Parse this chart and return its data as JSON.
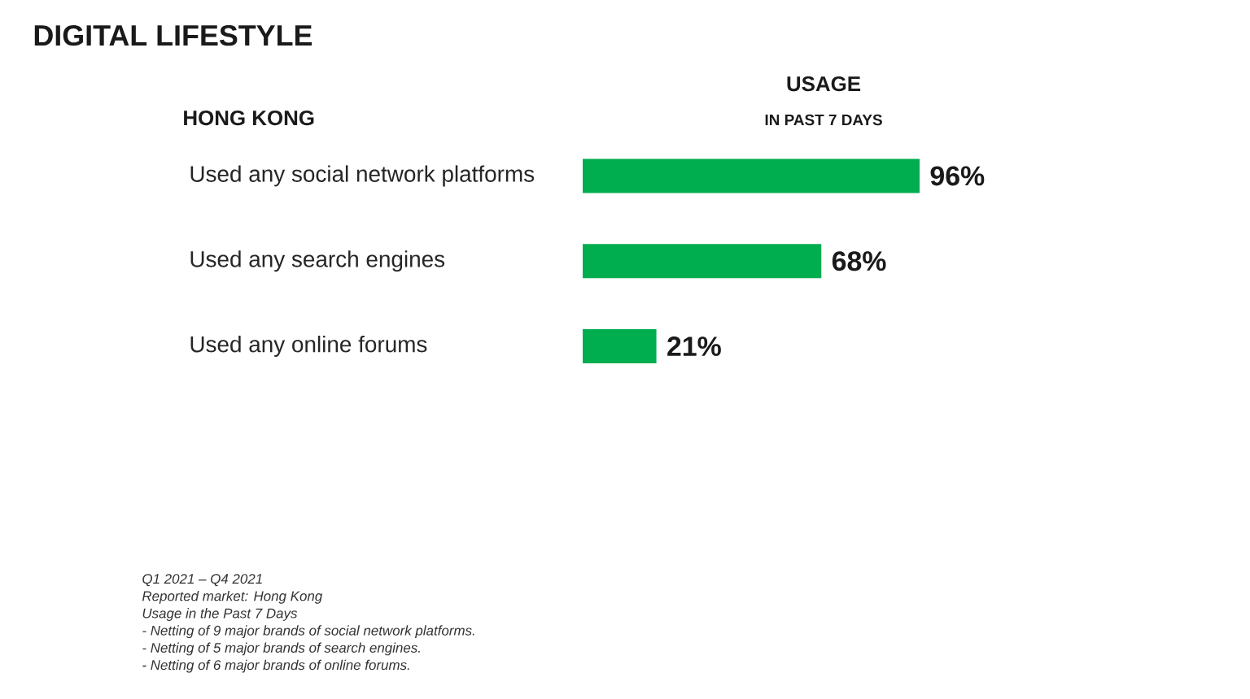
{
  "chart_data": {
    "type": "bar",
    "orientation": "horizontal",
    "title": "DIGITAL LIFESTYLE",
    "subtitle": "HONG KONG",
    "xlabel": "USAGE",
    "categories": [
      "Used any social network platforms",
      "Used any search engines",
      "Used any online forums"
    ],
    "values": [
      96,
      68,
      21
    ],
    "value_labels": [
      "96%",
      "68%",
      "21%"
    ],
    "color": "#00ad4f",
    "annotations": [
      "IN PAST 7 DAYS",
      "Q1 2021 – Q4 2021",
      "Reported market: Hong Kong",
      "Usage in the Past 7 Days",
      "- Netting of 9 major brands of social network platforms.",
      "- Netting of 5 major brands of search engines.",
      "- Netting of 6 major brands of online forums."
    ]
  }
}
